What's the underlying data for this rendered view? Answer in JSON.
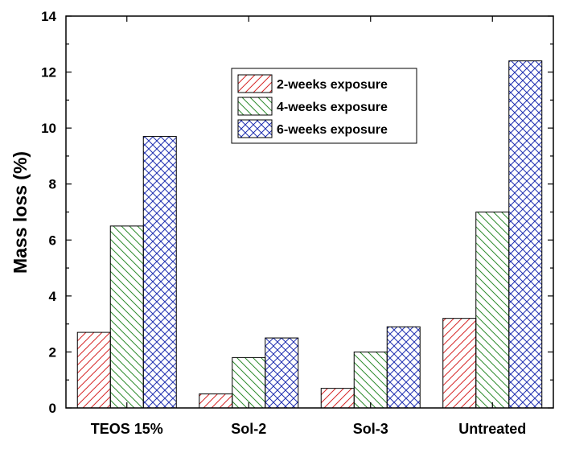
{
  "chart_data": {
    "type": "bar",
    "categories": [
      "TEOS 15%",
      "Sol-2",
      "Sol-3",
      "Untreated"
    ],
    "series": [
      {
        "name": "2-weeks exposure",
        "values": [
          2.7,
          0.5,
          0.7,
          3.2
        ],
        "color": "#d62728",
        "pattern": "diagonal-hatch"
      },
      {
        "name": "4-weeks exposure",
        "values": [
          6.5,
          1.8,
          2.0,
          7.0
        ],
        "color": "#2e8b2e",
        "pattern": "reverse-diagonal-hatch"
      },
      {
        "name": "6-weeks exposure",
        "values": [
          9.7,
          2.5,
          2.9,
          12.4
        ],
        "color": "#1f2fb0",
        "pattern": "cross-hatch"
      }
    ],
    "title": "",
    "xlabel": "",
    "ylabel": "Mass loss (%)",
    "ylim": [
      0,
      14
    ],
    "yticks": [
      "0",
      "2",
      "4",
      "6",
      "8",
      "10",
      "12",
      "14"
    ],
    "grid": false,
    "legend_position": "top-center"
  }
}
